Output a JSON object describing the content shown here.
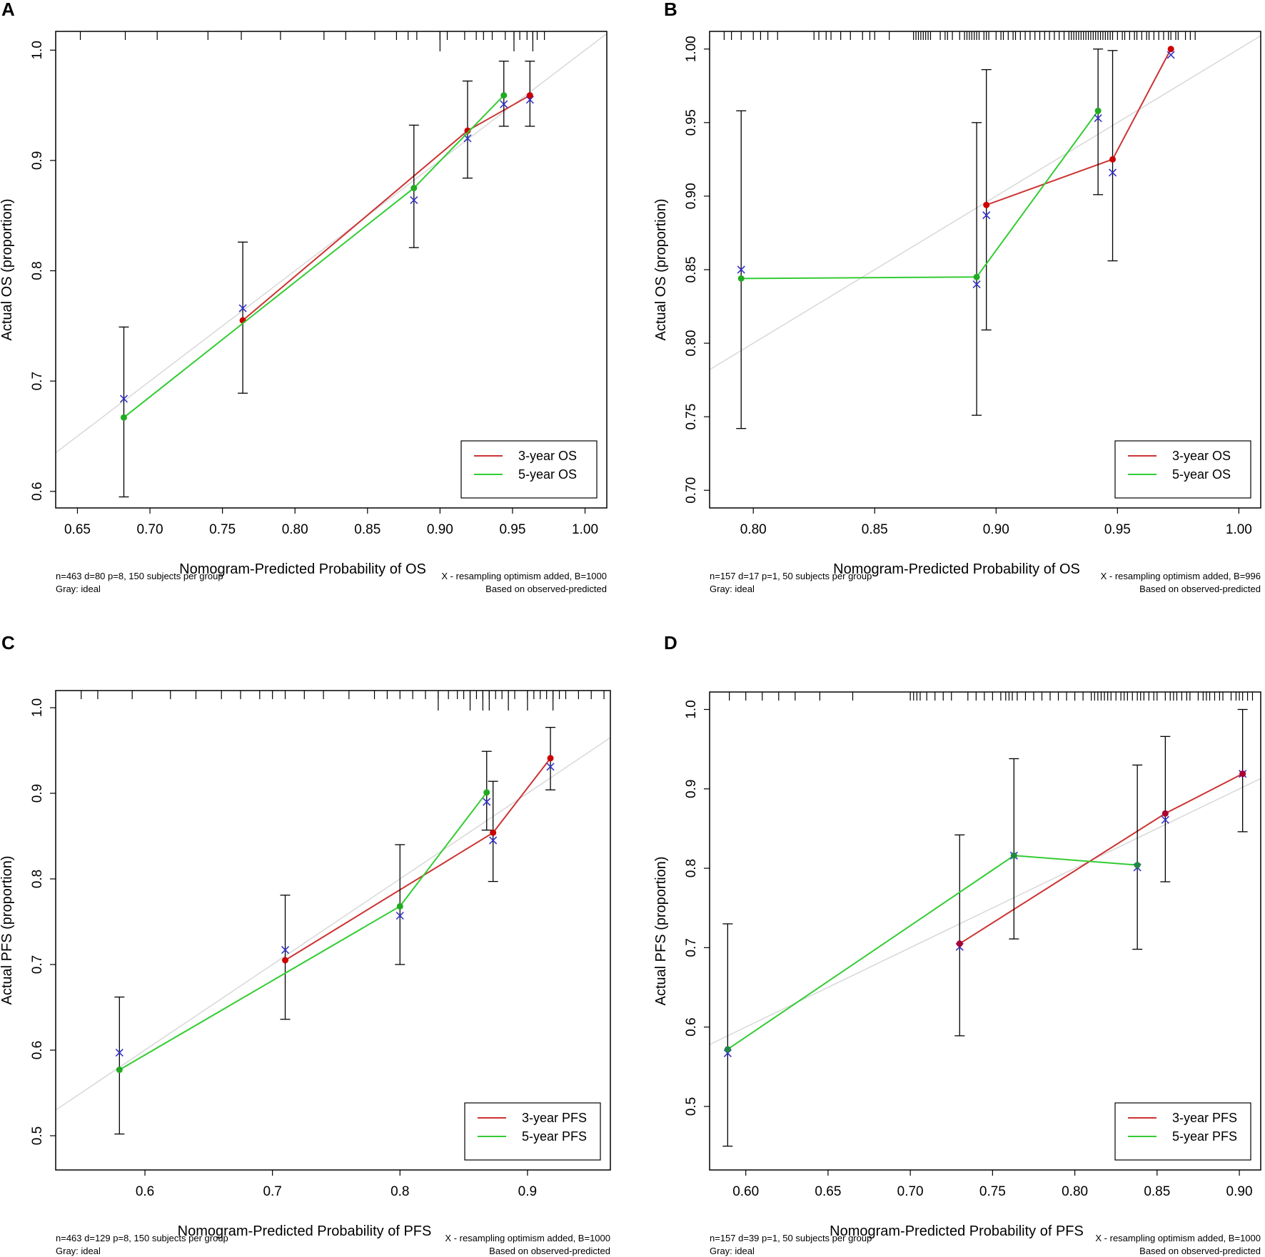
{
  "chart_data": [
    {
      "type": "line",
      "panel_label": "A",
      "xlabel": "Nomogram-Predicted Probability of OS",
      "ylabel": "Actual OS (proportion)",
      "xlim": [
        0.635,
        1.015
      ],
      "ylim": [
        0.585,
        1.017
      ],
      "xticks": [
        0.65,
        0.7,
        0.75,
        0.8,
        0.85,
        0.9,
        0.95,
        1.0
      ],
      "xtick_labels": [
        "0.65",
        "0.70",
        "0.75",
        "0.80",
        "0.85",
        "0.90",
        "0.95",
        "1.00"
      ],
      "yticks": [
        0.6,
        0.7,
        0.8,
        0.9,
        1.0
      ],
      "ytick_labels": [
        "0.6",
        "0.7",
        "0.8",
        "0.9",
        "1.0"
      ],
      "ideal_line": [
        [
          0.635,
          0.635
        ],
        [
          1.015,
          1.015
        ]
      ],
      "footnote_left": [
        "n=463 d=80 p=8, 150 subjects per group",
        "Gray: ideal"
      ],
      "footnote_right": [
        "X - resampling optimism added, B=1000",
        "Based on observed-predicted"
      ],
      "legend_position": "bottom-right",
      "series": [
        {
          "name": "3-year OS",
          "color": "#cc3333",
          "marker_color": "#cc0000",
          "x": [
            0.764,
            0.919,
            0.962
          ],
          "y": [
            0.755,
            0.927,
            0.959
          ],
          "ci_lower": [
            0.689,
            0.884,
            0.931
          ],
          "ci_upper": [
            0.826,
            0.972,
            0.99
          ],
          "corrected": [
            0.766,
            0.92,
            0.955
          ]
        },
        {
          "name": "5-year OS",
          "color": "#33cc33",
          "marker_color": "#22aa22",
          "x": [
            0.682,
            0.882,
            0.944
          ],
          "y": [
            0.667,
            0.875,
            0.959
          ],
          "ci_lower": [
            0.595,
            0.821,
            0.931
          ],
          "ci_upper": [
            0.749,
            0.932,
            0.99
          ],
          "corrected": [
            0.684,
            0.864,
            0.951
          ]
        }
      ],
      "rug": [
        0.652,
        0.683,
        0.705,
        0.74,
        0.763,
        0.79,
        0.82,
        0.835,
        0.855,
        0.87,
        0.878,
        0.884,
        0.9,
        0.905,
        0.917,
        0.925,
        0.93,
        0.936,
        0.945,
        0.951,
        0.955,
        0.96,
        0.964,
        0.967,
        0.972
      ],
      "rug_long": [
        0.9,
        0.951,
        0.964
      ]
    },
    {
      "type": "line",
      "panel_label": "B",
      "xlabel": "Nomogram-Predicted Probability of OS",
      "ylabel": "Actual OS (proportion)",
      "xlim": [
        0.782,
        1.009
      ],
      "ylim": [
        0.688,
        1.012
      ],
      "xticks": [
        0.8,
        0.85,
        0.9,
        0.95,
        1.0
      ],
      "xtick_labels": [
        "0.80",
        "0.85",
        "0.90",
        "0.95",
        "1.00"
      ],
      "yticks": [
        0.7,
        0.75,
        0.8,
        0.85,
        0.9,
        0.95,
        1.0
      ],
      "ytick_labels": [
        "0.70",
        "0.75",
        "0.80",
        "0.85",
        "0.90",
        "0.95",
        "1.00"
      ],
      "ideal_line": [
        [
          0.782,
          0.782
        ],
        [
          1.009,
          1.009
        ]
      ],
      "footnote_left": [
        "n=157 d=17 p=1, 50 subjects per group",
        "Gray: ideal"
      ],
      "footnote_right": [
        "X - resampling optimism added, B=996",
        "Based on observed-predicted"
      ],
      "legend_position": "bottom-right",
      "series": [
        {
          "name": "3-year OS",
          "color": "#cc3333",
          "marker_color": "#cc0000",
          "x": [
            0.896,
            0.948,
            0.972
          ],
          "y": [
            0.894,
            0.925,
            1.0
          ],
          "ci_lower": [
            0.809,
            0.856,
            null
          ],
          "ci_upper": [
            0.986,
            0.999,
            null
          ],
          "corrected": [
            0.887,
            0.916,
            0.996
          ]
        },
        {
          "name": "5-year OS",
          "color": "#33cc33",
          "marker_color": "#22aa22",
          "x": [
            0.795,
            0.892,
            0.942
          ],
          "y": [
            0.844,
            0.845,
            0.958
          ],
          "ci_lower": [
            0.742,
            0.751,
            0.901
          ],
          "ci_upper": [
            0.958,
            0.95,
            1.0
          ],
          "corrected": [
            0.85,
            0.84,
            0.953
          ]
        }
      ],
      "rug": [
        0.788,
        0.791,
        0.795,
        0.8,
        0.803,
        0.806,
        0.81,
        0.825,
        0.827,
        0.83,
        0.832,
        0.836,
        0.84,
        0.845,
        0.848,
        0.85,
        0.856,
        0.866,
        0.867,
        0.868,
        0.869,
        0.87,
        0.871,
        0.872,
        0.873,
        0.877,
        0.879,
        0.88,
        0.882,
        0.885,
        0.887,
        0.888,
        0.889,
        0.89,
        0.891,
        0.892,
        0.893,
        0.895,
        0.896,
        0.897,
        0.9,
        0.902,
        0.903,
        0.905,
        0.907,
        0.908,
        0.91,
        0.912,
        0.914,
        0.916,
        0.918,
        0.92,
        0.922,
        0.924,
        0.926,
        0.928,
        0.93,
        0.931,
        0.932,
        0.933,
        0.934,
        0.935,
        0.936,
        0.937,
        0.938,
        0.939,
        0.94,
        0.941,
        0.942,
        0.943,
        0.944,
        0.945,
        0.946,
        0.947,
        0.948,
        0.95,
        0.952,
        0.953,
        0.955,
        0.957,
        0.958,
        0.96,
        0.962,
        0.963,
        0.965,
        0.967,
        0.969,
        0.971,
        0.972,
        0.974,
        0.975,
        0.978,
        0.98,
        0.982
      ],
      "rug_long": []
    },
    {
      "type": "line",
      "panel_label": "C",
      "xlabel": "Nomogram-Predicted Probability of PFS",
      "ylabel": "Actual PFS (proportion)",
      "xlim": [
        0.53,
        0.965
      ],
      "ylim": [
        0.46,
        1.02
      ],
      "xticks": [
        0.6,
        0.7,
        0.8,
        0.9
      ],
      "xtick_labels": [
        "0.6",
        "0.7",
        "0.8",
        "0.9"
      ],
      "yticks": [
        0.5,
        0.6,
        0.7,
        0.8,
        0.9,
        1.0
      ],
      "ytick_labels": [
        "0.5",
        "0.6",
        "0.7",
        "0.8",
        "0.9",
        "1.0"
      ],
      "ideal_line": [
        [
          0.53,
          0.53
        ],
        [
          0.965,
          0.965
        ]
      ],
      "footnote_left": [
        "n=463 d=129 p=8, 150 subjects per group",
        "Gray: ideal"
      ],
      "footnote_right": [
        "X - resampling optimism added, B=1000",
        "Based on observed-predicted"
      ],
      "legend_position": "bottom-right",
      "series": [
        {
          "name": "3-year PFS",
          "color": "#cc3333",
          "marker_color": "#cc0000",
          "x": [
            0.71,
            0.873,
            0.918
          ],
          "y": [
            0.705,
            0.854,
            0.941
          ],
          "ci_lower": [
            0.636,
            0.797,
            0.904
          ],
          "ci_upper": [
            0.781,
            0.914,
            0.977
          ],
          "corrected": [
            0.717,
            0.845,
            0.931
          ]
        },
        {
          "name": "5-year PFS",
          "color": "#33cc33",
          "marker_color": "#22aa22",
          "x": [
            0.58,
            0.8,
            0.868
          ],
          "y": [
            0.577,
            0.768,
            0.901
          ],
          "ci_lower": [
            0.502,
            0.7,
            0.857
          ],
          "ci_upper": [
            0.662,
            0.84,
            0.949
          ],
          "corrected": [
            0.597,
            0.757,
            0.89
          ]
        }
      ],
      "rug": [
        0.55,
        0.563,
        0.59,
        0.62,
        0.64,
        0.66,
        0.675,
        0.69,
        0.7,
        0.71,
        0.725,
        0.74,
        0.76,
        0.78,
        0.79,
        0.8,
        0.81,
        0.82,
        0.83,
        0.838,
        0.845,
        0.85,
        0.855,
        0.86,
        0.865,
        0.87,
        0.875,
        0.88,
        0.885,
        0.89,
        0.9,
        0.905,
        0.91,
        0.915,
        0.92,
        0.925,
        0.93,
        0.94,
        0.95,
        0.96
      ],
      "rug_long": [
        0.83,
        0.855,
        0.865,
        0.87,
        0.885,
        0.9,
        0.92
      ]
    },
    {
      "type": "line",
      "panel_label": "D",
      "xlabel": "Nomogram-Predicted Probability of PFS",
      "ylabel": "Actual PFS (proportion)",
      "xlim": [
        0.578,
        0.913
      ],
      "ylim": [
        0.42,
        1.022
      ],
      "xticks": [
        0.6,
        0.65,
        0.7,
        0.75,
        0.8,
        0.85,
        0.9
      ],
      "xtick_labels": [
        "0.60",
        "0.65",
        "0.70",
        "0.75",
        "0.80",
        "0.85",
        "0.90"
      ],
      "yticks": [
        0.5,
        0.6,
        0.7,
        0.8,
        0.9,
        1.0
      ],
      "ytick_labels": [
        "0.5",
        "0.6",
        "0.7",
        "0.8",
        "0.9",
        "1.0"
      ],
      "ideal_line": [
        [
          0.578,
          0.578
        ],
        [
          0.913,
          0.913
        ]
      ],
      "footnote_left": [
        "n=157 d=39 p=1, 50 subjects per group",
        "Gray: ideal"
      ],
      "footnote_right": [
        "X - resampling optimism added, B=1000",
        "Based on observed-predicted"
      ],
      "legend_position": "bottom-right",
      "series": [
        {
          "name": "3-year PFS",
          "color": "#cc3333",
          "marker_color": "#aa0033",
          "x": [
            0.73,
            0.855,
            0.902
          ],
          "y": [
            0.705,
            0.869,
            0.919
          ],
          "ci_lower": [
            0.589,
            0.783,
            0.846
          ],
          "ci_upper": [
            0.842,
            0.966,
            1.0
          ],
          "corrected": [
            0.701,
            0.861,
            0.919
          ]
        },
        {
          "name": "5-year PFS",
          "color": "#33cc33",
          "marker_color": "#228844",
          "x": [
            0.589,
            0.763,
            0.838
          ],
          "y": [
            0.572,
            0.816,
            0.804
          ],
          "ci_lower": [
            0.45,
            0.711,
            0.698
          ],
          "ci_upper": [
            0.73,
            0.938,
            0.93
          ],
          "corrected": [
            0.567,
            0.816,
            0.801
          ]
        }
      ],
      "rug": [
        0.59,
        0.6,
        0.61,
        0.62,
        0.63,
        0.645,
        0.665,
        0.7,
        0.702,
        0.704,
        0.706,
        0.71,
        0.715,
        0.72,
        0.725,
        0.735,
        0.74,
        0.745,
        0.75,
        0.755,
        0.758,
        0.76,
        0.762,
        0.765,
        0.77,
        0.775,
        0.78,
        0.785,
        0.79,
        0.795,
        0.8,
        0.805,
        0.81,
        0.812,
        0.814,
        0.816,
        0.818,
        0.82,
        0.822,
        0.825,
        0.828,
        0.83,
        0.832,
        0.835,
        0.838,
        0.84,
        0.842,
        0.845,
        0.848,
        0.85,
        0.855,
        0.858,
        0.86,
        0.862,
        0.865,
        0.868,
        0.87,
        0.875,
        0.878,
        0.88,
        0.882,
        0.885,
        0.888,
        0.89,
        0.895,
        0.898,
        0.9,
        0.902,
        0.905,
        0.908
      ],
      "rug_long": []
    }
  ]
}
